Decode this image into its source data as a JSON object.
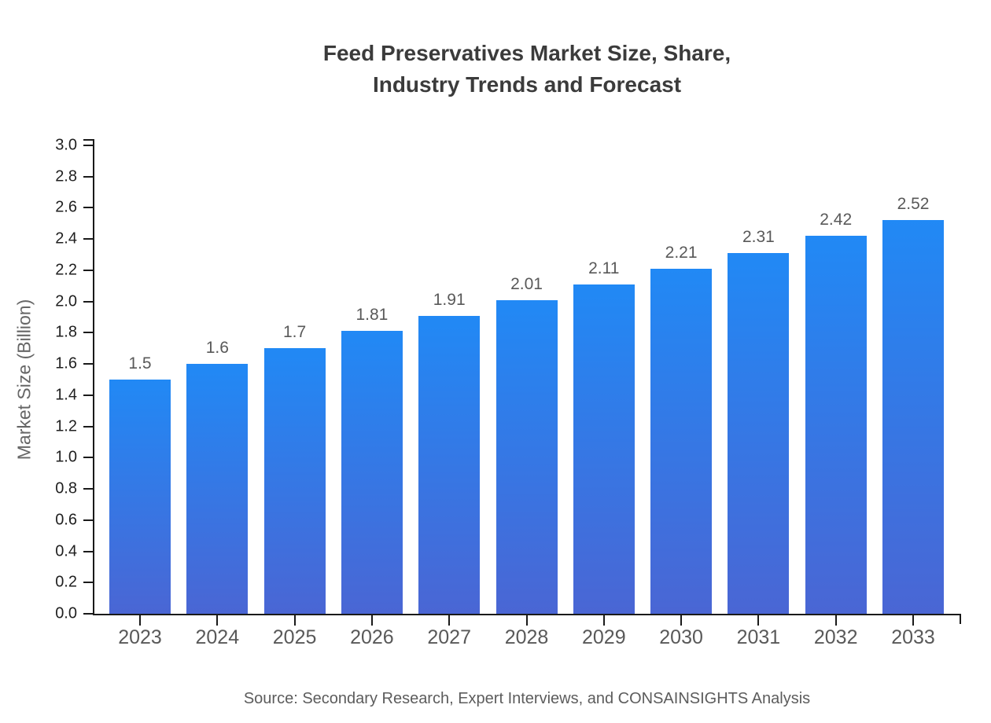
{
  "header": {
    "title_line1": "Feed Preservatives Market Size, Share,",
    "title_line2": "Industry Trends and Forecast"
  },
  "footer": {
    "source": "Source: Secondary Research, Expert Interviews, and CONSAINSIGHTS Analysis"
  },
  "chart_data": {
    "type": "bar",
    "title": "Feed Preservatives Market Size, Share, Industry Trends and Forecast",
    "categories": [
      "2023",
      "2024",
      "2025",
      "2026",
      "2027",
      "2028",
      "2029",
      "2030",
      "2031",
      "2032",
      "2033"
    ],
    "values": [
      1.5,
      1.6,
      1.7,
      1.81,
      1.91,
      2.01,
      2.11,
      2.21,
      2.31,
      2.42,
      2.52
    ],
    "bar_labels": [
      "1.5",
      "1.6",
      "1.7",
      "1.81",
      "1.91",
      "2.01",
      "2.11",
      "2.21",
      "2.31",
      "2.42",
      "2.52"
    ],
    "xlabel": "",
    "ylabel": "Market Size (Billion)",
    "ylim": [
      0.0,
      3.0
    ],
    "y_ticks": [
      "0.0",
      "0.2",
      "0.4",
      "0.6",
      "0.8",
      "1.0",
      "1.2",
      "1.4",
      "1.6",
      "1.8",
      "2.0",
      "2.2",
      "2.4",
      "2.6",
      "2.8",
      "3.0"
    ],
    "grid": false,
    "legend": false,
    "colors": {
      "background": "#ffffff",
      "bar_top": "#2189f5",
      "bar_bottom": "#4a66d4",
      "axis": "#1a1a1a",
      "y_tick_label": "#1f1f1f",
      "x_tick_label": "#595959",
      "value_label": "#595959",
      "title": "#3b3b3b",
      "ylabel": "#666666",
      "source": "#5c5c5c"
    }
  }
}
